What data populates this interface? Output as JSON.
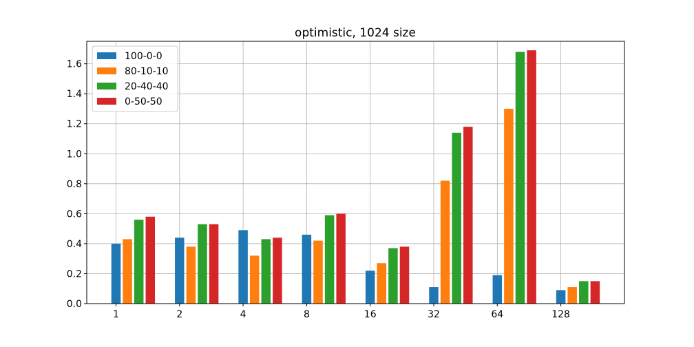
{
  "chart_data": {
    "type": "bar",
    "title": "optimistic, 1024 size",
    "xlabel": "",
    "ylabel": "",
    "categories": [
      "1",
      "2",
      "4",
      "8",
      "16",
      "32",
      "64",
      "128"
    ],
    "series": [
      {
        "name": "100-0-0",
        "color": "#1f77b4",
        "values": [
          0.4,
          0.44,
          0.49,
          0.46,
          0.22,
          0.11,
          0.19,
          0.09
        ]
      },
      {
        "name": "80-10-10",
        "color": "#ff7f0e",
        "values": [
          0.43,
          0.38,
          0.32,
          0.42,
          0.27,
          0.82,
          1.3,
          0.11
        ]
      },
      {
        "name": "20-40-40",
        "color": "#2ca02c",
        "values": [
          0.56,
          0.53,
          0.43,
          0.59,
          0.37,
          1.14,
          1.68,
          0.15
        ]
      },
      {
        "name": "0-50-50",
        "color": "#d62728",
        "values": [
          0.58,
          0.53,
          0.44,
          0.6,
          0.38,
          1.18,
          1.69,
          0.15
        ]
      }
    ],
    "ylim": [
      0,
      1.75
    ],
    "yticks": [
      "0.0",
      "0.2",
      "0.4",
      "0.6",
      "0.8",
      "1.0",
      "1.2",
      "1.4",
      "1.6"
    ],
    "grid": true,
    "legend_position": "top-left"
  }
}
